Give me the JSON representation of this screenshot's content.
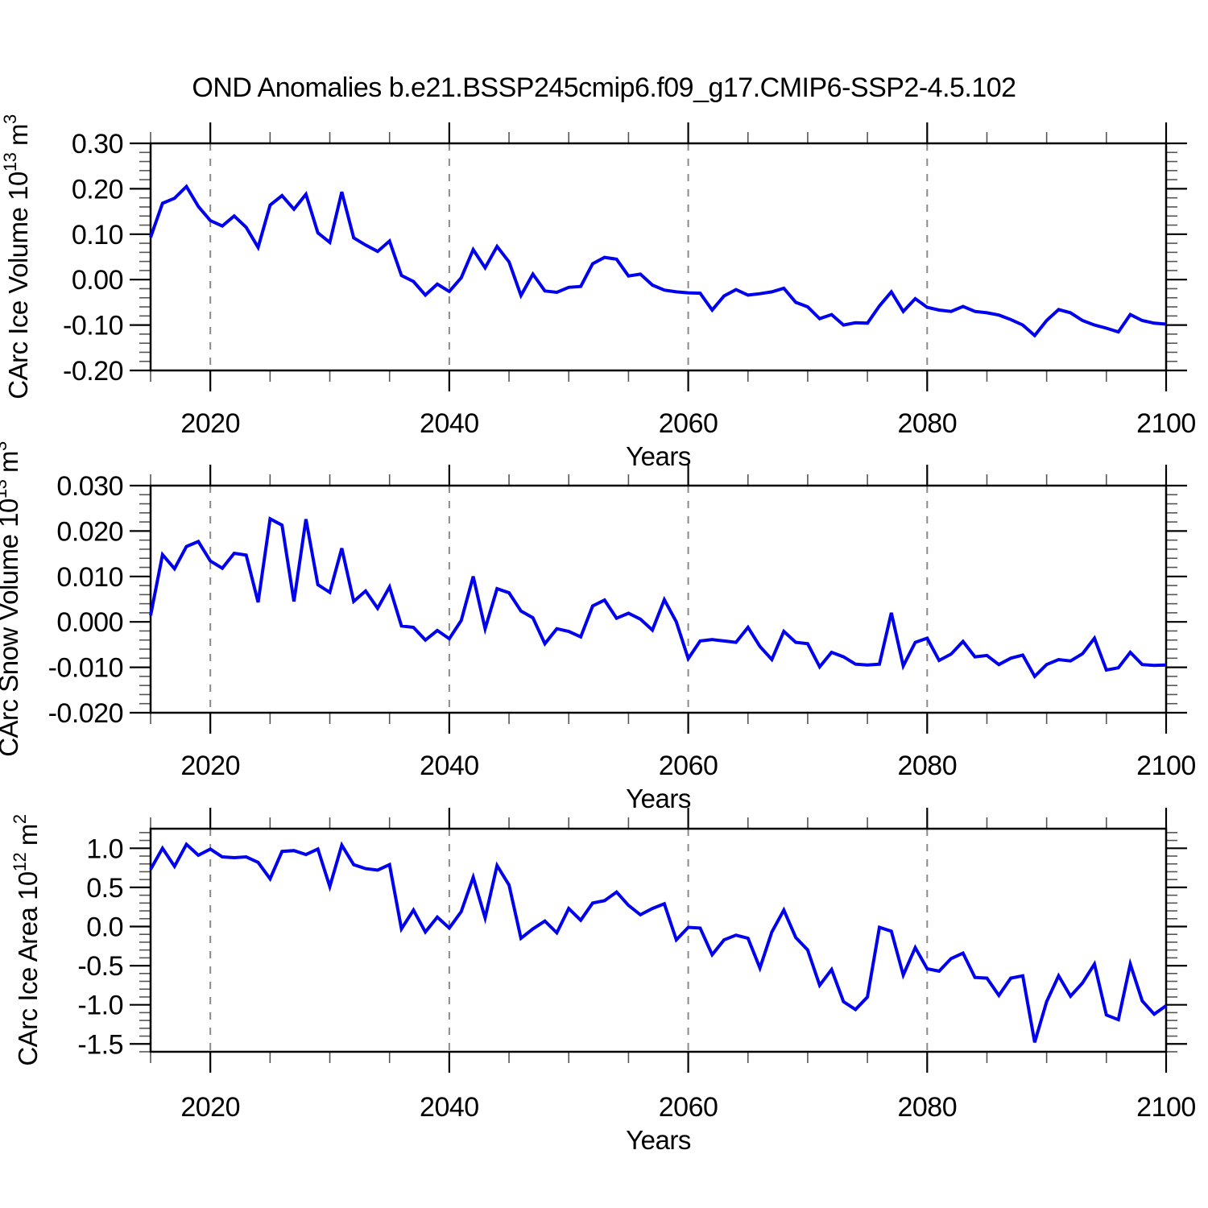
{
  "title": "OND Anomalies b.e21.BSSP245cmip6.f09_g17.CMIP6-SSP2-4.5.102",
  "line_color": "#0000ee",
  "axis_color": "#000000",
  "grid_color": "#8a8a8a",
  "x": {
    "start": 2015,
    "end": 2100,
    "step": 1
  },
  "x_ticks": [
    {
      "v": 2020,
      "label": "2020"
    },
    {
      "v": 2040,
      "label": "2040"
    },
    {
      "v": 2060,
      "label": "2060"
    },
    {
      "v": 2080,
      "label": "2080"
    },
    {
      "v": 2100,
      "label": "2100"
    }
  ],
  "x_minor_step": 5,
  "grid_years": [
    2020,
    2040,
    2060,
    2080
  ],
  "xlabel": "Years",
  "chart_data": [
    {
      "id": "ice-volume",
      "type": "line",
      "ylabel_text": "CArc Ice Volume 10^13 m^3",
      "ylabel_parts": [
        {
          "t": "CArc Ice Volume 10",
          "sup": false
        },
        {
          "t": "13",
          "sup": true
        },
        {
          "t": " m",
          "sup": false
        },
        {
          "t": "3",
          "sup": true
        }
      ],
      "xlabel": "Years",
      "ylim": [
        -0.2,
        0.3
      ],
      "yticks": [
        {
          "v": 0.3,
          "label": "0.30"
        },
        {
          "v": 0.2,
          "label": "0.20"
        },
        {
          "v": 0.1,
          "label": "0.10"
        },
        {
          "v": 0.0,
          "label": "0.00"
        },
        {
          "v": -0.1,
          "label": "-0.10"
        },
        {
          "v": -0.2,
          "label": "-0.20"
        }
      ],
      "y_minor_step": 0.02,
      "values": [
        0.093,
        0.168,
        0.179,
        0.205,
        0.161,
        0.13,
        0.118,
        0.14,
        0.115,
        0.071,
        0.164,
        0.185,
        0.155,
        0.188,
        0.103,
        0.082,
        0.193,
        0.092,
        0.076,
        0.062,
        0.085,
        0.009,
        -0.004,
        -0.034,
        -0.01,
        -0.026,
        0.004,
        0.066,
        0.026,
        0.073,
        0.039,
        -0.035,
        0.012,
        -0.025,
        -0.028,
        -0.017,
        -0.015,
        0.035,
        0.049,
        0.045,
        0.008,
        0.012,
        -0.012,
        -0.023,
        -0.027,
        -0.029,
        -0.03,
        -0.067,
        -0.036,
        -0.022,
        -0.034,
        -0.031,
        -0.027,
        -0.019,
        -0.05,
        -0.06,
        -0.086,
        -0.077,
        -0.1,
        -0.095,
        -0.096,
        -0.058,
        -0.027,
        -0.07,
        -0.042,
        -0.061,
        -0.067,
        -0.07,
        -0.059,
        -0.07,
        -0.073,
        -0.078,
        -0.088,
        -0.1,
        -0.123,
        -0.09,
        -0.066,
        -0.073,
        -0.09,
        -0.1,
        -0.107,
        -0.115,
        -0.077,
        -0.09,
        -0.096,
        -0.098
      ]
    },
    {
      "id": "snow-volume",
      "type": "line",
      "ylabel_text": "CArc Snow Volume 10^13 m^3",
      "ylabel_parts": [
        {
          "t": "CArc Snow Volume 10",
          "sup": false
        },
        {
          "t": "13",
          "sup": true
        },
        {
          "t": " m",
          "sup": false
        },
        {
          "t": "3",
          "sup": true
        }
      ],
      "xlabel": "Years",
      "ylim": [
        -0.02,
        0.03
      ],
      "yticks": [
        {
          "v": 0.03,
          "label": "0.030"
        },
        {
          "v": 0.02,
          "label": "0.020"
        },
        {
          "v": 0.01,
          "label": "0.010"
        },
        {
          "v": 0.0,
          "label": "0.000"
        },
        {
          "v": -0.01,
          "label": "-0.010"
        },
        {
          "v": -0.02,
          "label": "-0.020"
        }
      ],
      "y_minor_step": 0.002,
      "values": [
        0.0014,
        0.0148,
        0.0117,
        0.0166,
        0.0177,
        0.0134,
        0.0118,
        0.0151,
        0.0147,
        0.0043,
        0.0227,
        0.0213,
        0.0045,
        0.0226,
        0.0082,
        0.0065,
        0.0162,
        0.0045,
        0.0068,
        0.003,
        0.0077,
        -0.0009,
        -0.0012,
        -0.004,
        -0.0019,
        -0.0037,
        0.0003,
        0.01,
        -0.0015,
        0.0073,
        0.0064,
        0.0024,
        0.0009,
        -0.0048,
        -0.0015,
        -0.0021,
        -0.0033,
        0.0035,
        0.0048,
        0.0008,
        0.0019,
        0.0006,
        -0.0018,
        0.0049,
        0.0,
        -0.0081,
        -0.0042,
        -0.0039,
        -0.0042,
        -0.0045,
        -0.0012,
        -0.0054,
        -0.0083,
        -0.0021,
        -0.0045,
        -0.0048,
        -0.0099,
        -0.0067,
        -0.0077,
        -0.0093,
        -0.0095,
        -0.0093,
        0.002,
        -0.0097,
        -0.0045,
        -0.0036,
        -0.0085,
        -0.0071,
        -0.0043,
        -0.0077,
        -0.0074,
        -0.0094,
        -0.008,
        -0.0073,
        -0.012,
        -0.0094,
        -0.0083,
        -0.0086,
        -0.007,
        -0.0036,
        -0.0106,
        -0.0101,
        -0.0067,
        -0.0094,
        -0.0096,
        -0.0095
      ]
    },
    {
      "id": "ice-area",
      "type": "line",
      "ylabel_text": "CArc Ice Area 10^12 m^2",
      "ylabel_parts": [
        {
          "t": "CArc Ice Area 10",
          "sup": false
        },
        {
          "t": "12",
          "sup": true
        },
        {
          "t": " m",
          "sup": false
        },
        {
          "t": "2",
          "sup": true
        }
      ],
      "xlabel": "Years",
      "ylim": [
        -1.6,
        1.25
      ],
      "yticks": [
        {
          "v": 1.0,
          "label": "1.0"
        },
        {
          "v": 0.5,
          "label": "0.5"
        },
        {
          "v": 0.0,
          "label": "0.0"
        },
        {
          "v": -0.5,
          "label": "-0.5"
        },
        {
          "v": -1.0,
          "label": "-1.0"
        },
        {
          "v": -1.5,
          "label": "-1.5"
        }
      ],
      "y_minor_step": 0.1,
      "values": [
        0.73,
        1.0,
        0.77,
        1.05,
        0.91,
        0.99,
        0.89,
        0.88,
        0.89,
        0.82,
        0.61,
        0.96,
        0.97,
        0.92,
        0.99,
        0.51,
        1.04,
        0.79,
        0.74,
        0.72,
        0.79,
        -0.03,
        0.21,
        -0.07,
        0.12,
        -0.02,
        0.19,
        0.63,
        0.11,
        0.78,
        0.53,
        -0.15,
        -0.03,
        0.07,
        -0.08,
        0.23,
        0.08,
        0.3,
        0.33,
        0.44,
        0.27,
        0.15,
        0.23,
        0.29,
        -0.17,
        -0.01,
        -0.02,
        -0.36,
        -0.17,
        -0.11,
        -0.15,
        -0.53,
        -0.07,
        0.21,
        -0.14,
        -0.3,
        -0.75,
        -0.55,
        -0.96,
        -1.06,
        -0.9,
        -0.01,
        -0.06,
        -0.62,
        -0.27,
        -0.54,
        -0.57,
        -0.41,
        -0.34,
        -0.65,
        -0.66,
        -0.88,
        -0.66,
        -0.63,
        -1.48,
        -0.96,
        -0.63,
        -0.89,
        -0.72,
        -0.48,
        -1.13,
        -1.19,
        -0.48,
        -0.95,
        -1.12,
        -1.01
      ]
    }
  ]
}
